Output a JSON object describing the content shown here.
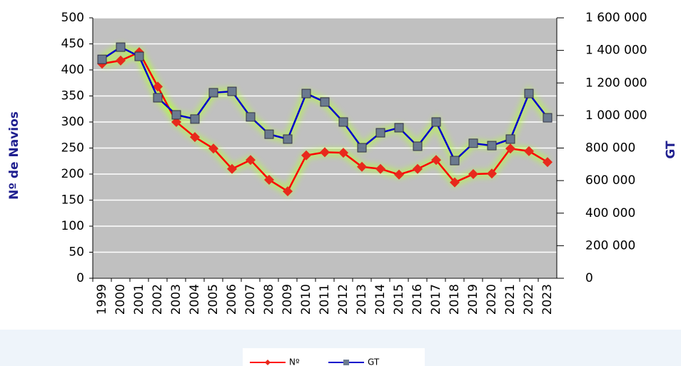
{
  "chart_data": {
    "type": "line",
    "y_label": "Nº de Navios",
    "y2_label": "GT",
    "categories": [
      "1999",
      "2000",
      "2001",
      "2002",
      "2003",
      "2004",
      "2005",
      "2006",
      "2007",
      "2008",
      "2009",
      "2010",
      "2011",
      "2012",
      "2013",
      "2014",
      "2015",
      "2016",
      "2017",
      "2018",
      "2019",
      "2020",
      "2021",
      "2022",
      "2023"
    ],
    "series": [
      {
        "name": "Nº",
        "color": "#ff0000",
        "marker_color": "#e8291c",
        "values": [
          412,
          418,
          434,
          368,
          300,
          271,
          249,
          210,
          227,
          189,
          167,
          236,
          242,
          241,
          214,
          210,
          199,
          210,
          227,
          184,
          200,
          201,
          249,
          244,
          223
        ]
      },
      {
        "name": "GT",
        "color": "#0000cc",
        "marker_color": "#6b7a8f",
        "axis": "y2",
        "values": [
          1345000,
          1420000,
          1363000,
          1109000,
          1004000,
          978000,
          1140000,
          1148000,
          991000,
          885000,
          855000,
          1135000,
          1083000,
          960000,
          802000,
          894000,
          925000,
          811000,
          960000,
          723000,
          829000,
          815000,
          855000,
          1135000,
          986000
        ]
      }
    ],
    "ylim": [
      0,
      500
    ],
    "yticks": [
      0,
      50,
      100,
      150,
      200,
      250,
      300,
      350,
      400,
      450,
      500
    ],
    "y2lim": [
      0,
      1600000
    ],
    "y2ticks": [
      0,
      {
        "value": 200000,
        "label": "200 000"
      },
      {
        "value": 400000,
        "label": "400 000"
      },
      {
        "value": 600000,
        "label": "600 000"
      },
      {
        "value": 800000,
        "label": "800 000"
      },
      {
        "value": 1000000,
        "label": "1 000 000"
      },
      {
        "value": 1200000,
        "label": "1 200 000"
      },
      {
        "value": 1400000,
        "label": "1 400 000"
      },
      {
        "value": 1600000,
        "label": "1 600 000"
      }
    ],
    "grid": true,
    "legend": "bottom"
  }
}
